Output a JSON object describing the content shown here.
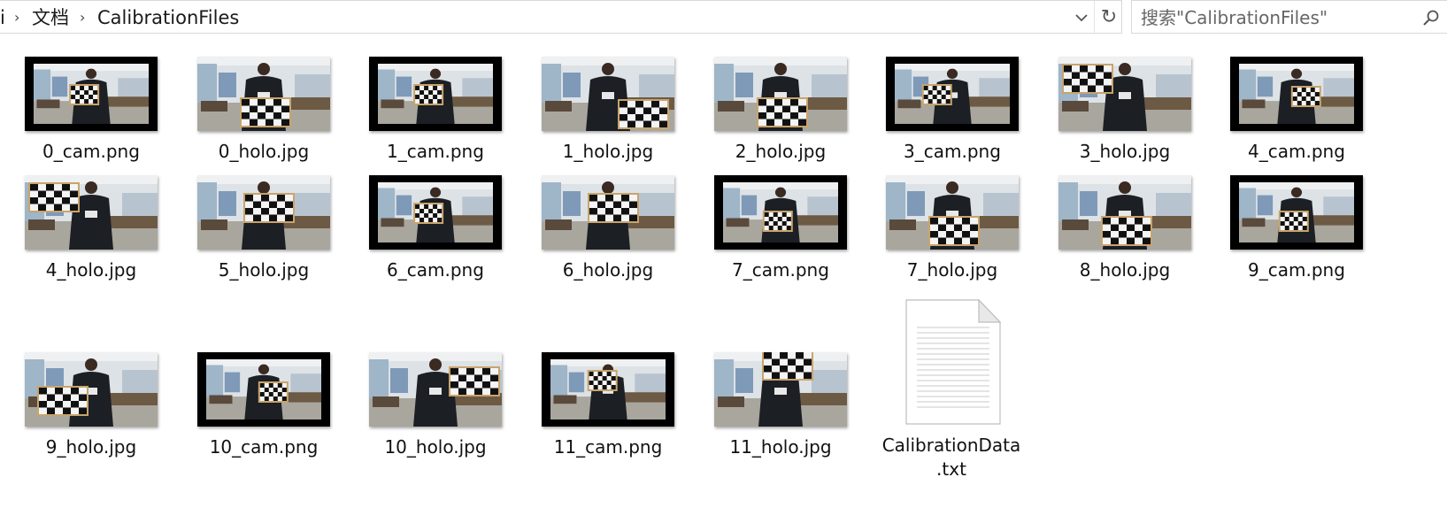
{
  "breadcrumb": {
    "lead": "i",
    "folder1": "文档",
    "folder2": "CalibrationFiles"
  },
  "search": {
    "placeholder": "搜索\"CalibrationFiles\""
  },
  "files": [
    {
      "name": "0_cam.png",
      "kind": "cam",
      "board": "center"
    },
    {
      "name": "0_holo.jpg",
      "kind": "holo",
      "board": "bottom-center"
    },
    {
      "name": "1_cam.png",
      "kind": "cam",
      "board": "center"
    },
    {
      "name": "1_holo.jpg",
      "kind": "holo",
      "board": "bottom-right"
    },
    {
      "name": "2_holo.jpg",
      "kind": "holo",
      "board": "bottom-center"
    },
    {
      "name": "3_cam.png",
      "kind": "cam",
      "board": "center-left"
    },
    {
      "name": "3_holo.jpg",
      "kind": "holo",
      "board": "top-left"
    },
    {
      "name": "4_cam.png",
      "kind": "cam",
      "board": "center-right"
    },
    {
      "name": "4_holo.jpg",
      "kind": "holo",
      "board": "left"
    },
    {
      "name": "5_holo.jpg",
      "kind": "holo",
      "board": "center"
    },
    {
      "name": "6_cam.png",
      "kind": "cam",
      "board": "center"
    },
    {
      "name": "6_holo.jpg",
      "kind": "holo",
      "board": "center"
    },
    {
      "name": "7_cam.png",
      "kind": "cam",
      "board": "center-low"
    },
    {
      "name": "7_holo.jpg",
      "kind": "holo",
      "board": "bottom-center"
    },
    {
      "name": "8_holo.jpg",
      "kind": "holo",
      "board": "bottom-center"
    },
    {
      "name": "9_cam.png",
      "kind": "cam",
      "board": "center-low"
    },
    {
      "name": "9_holo.jpg",
      "kind": "holo",
      "board": "bottom-left"
    },
    {
      "name": "10_cam.png",
      "kind": "cam",
      "board": "center-right"
    },
    {
      "name": "10_holo.jpg",
      "kind": "holo",
      "board": "right"
    },
    {
      "name": "11_cam.png",
      "kind": "cam",
      "board": "top-center"
    },
    {
      "name": "11_holo.jpg",
      "kind": "holo",
      "board": "top-center"
    }
  ],
  "text_file": {
    "name_line1": "CalibrationData",
    "name_line2": ".txt"
  }
}
